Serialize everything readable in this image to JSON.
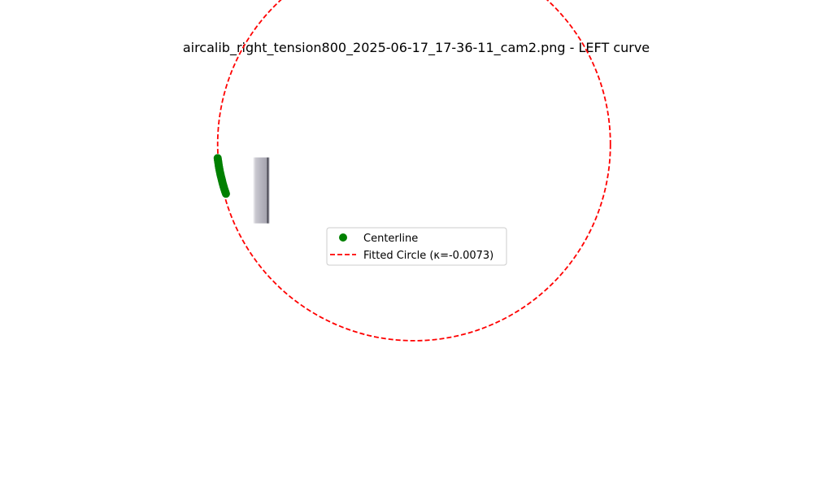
{
  "chart_data": {
    "type": "scatter",
    "title": "aircalib_right_tension800_2025-06-17_17-36-11_cam2.png - LEFT curve",
    "xlim": [
      -12.0,
      618.0
    ],
    "ylim": [
      420.0,
      -150.0
    ],
    "axes_visible": false,
    "grid": false,
    "legend_position": "center",
    "background_image": {
      "extent_x": [
        55.0,
        80.0
      ],
      "extent_y": [
        0.0,
        100.0
      ],
      "description": "grayscale camera frame strip"
    },
    "series": [
      {
        "name": "Centerline",
        "kind": "points",
        "color": "#008000",
        "points": [
          [
            1.0,
            1.0
          ],
          [
            1.3,
            3.0
          ],
          [
            1.6,
            5.0
          ],
          [
            1.9,
            7.0
          ],
          [
            2.2,
            9.0
          ],
          [
            2.5,
            11.0
          ],
          [
            2.8,
            13.0
          ],
          [
            3.1,
            15.0
          ],
          [
            3.5,
            17.0
          ],
          [
            3.9,
            19.0
          ],
          [
            4.3,
            21.0
          ],
          [
            4.7,
            23.0
          ],
          [
            5.1,
            25.0
          ],
          [
            5.6,
            27.0
          ],
          [
            6.1,
            29.0
          ],
          [
            6.6,
            31.0
          ],
          [
            7.1,
            33.0
          ],
          [
            7.6,
            35.0
          ],
          [
            8.1,
            37.0
          ],
          [
            8.6,
            39.0
          ],
          [
            9.1,
            41.0
          ],
          [
            9.7,
            43.0
          ],
          [
            10.3,
            45.0
          ],
          [
            10.9,
            47.0
          ],
          [
            11.5,
            49.0
          ],
          [
            12.2,
            51.0
          ],
          [
            12.9,
            53.0
          ],
          [
            13.6,
            55.0
          ]
        ]
      },
      {
        "name": "Fitted Circle (κ=-0.0073)",
        "kind": "circle",
        "color": "#ff0000",
        "linestyle": "dashed",
        "center": [
          299.0,
          -20.0
        ],
        "radius": 298.0
      }
    ]
  }
}
